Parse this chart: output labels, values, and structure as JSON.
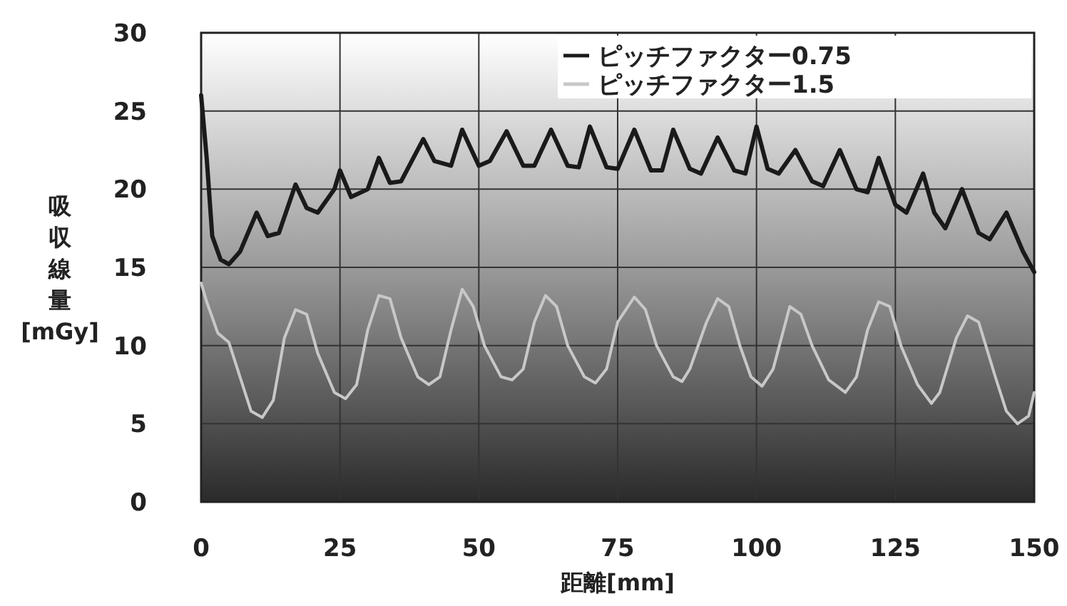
{
  "chart_data": {
    "type": "line",
    "xlabel": "距離[mm]",
    "ylabel": "吸収線量[mGy]",
    "xlim": [
      0,
      150
    ],
    "ylim": [
      0,
      30
    ],
    "xticks": [
      0,
      25,
      50,
      75,
      100,
      125,
      150
    ],
    "yticks": [
      0,
      5,
      10,
      15,
      20,
      25,
      30
    ],
    "grid": true,
    "legend": "top right",
    "line_style": "solid",
    "series": [
      {
        "name": "ピッチファクター0.75",
        "color": "#1a1a1a",
        "x": [
          0,
          1,
          2,
          3.5,
          5,
          7,
          10,
          12,
          14,
          17,
          19,
          21,
          24,
          25,
          27,
          30,
          32,
          34,
          36,
          40,
          42,
          45,
          47,
          50,
          52,
          55,
          58,
          60,
          63,
          66,
          68,
          70,
          73,
          75,
          78,
          81,
          83,
          85,
          88,
          90,
          93,
          96,
          98,
          100,
          102,
          104,
          107,
          110,
          112,
          115,
          118,
          120,
          122,
          125,
          127,
          130,
          132,
          134,
          137,
          140,
          142,
          145,
          148,
          150
        ],
        "values": [
          26,
          22,
          17,
          15.5,
          15.2,
          16,
          18.5,
          17,
          17.2,
          20.3,
          18.8,
          18.5,
          20,
          21.2,
          19.5,
          20,
          22,
          20.4,
          20.5,
          23.2,
          21.8,
          21.5,
          23.8,
          21.5,
          21.8,
          23.7,
          21.5,
          21.5,
          23.8,
          21.5,
          21.4,
          24,
          21.4,
          21.3,
          23.8,
          21.2,
          21.2,
          23.8,
          21.3,
          21,
          23.3,
          21.2,
          21,
          24,
          21.3,
          21,
          22.5,
          20.5,
          20.2,
          22.5,
          20,
          19.8,
          22,
          19,
          18.5,
          21,
          18.5,
          17.5,
          20,
          17.2,
          16.8,
          18.5,
          16,
          14.7
        ]
      },
      {
        "name": "ピッチファクター1.5",
        "color": "#c8c8c8",
        "x": [
          0,
          1,
          3,
          5,
          7,
          9,
          11,
          13,
          15,
          17,
          19,
          21,
          24,
          26,
          28,
          30,
          32,
          34,
          36,
          39,
          41,
          43,
          45,
          47,
          49,
          51,
          54,
          56,
          58,
          60,
          62,
          64,
          66,
          69,
          71,
          73,
          75,
          78,
          80,
          82,
          85,
          86.6,
          88,
          91,
          93,
          95,
          97,
          99,
          101,
          103,
          106,
          108,
          110,
          113,
          116,
          118,
          120,
          122,
          124,
          126,
          129,
          131.5,
          133,
          136,
          138,
          140,
          143,
          145,
          147,
          149,
          150
        ],
        "values": [
          14,
          12.8,
          10.8,
          10.2,
          8,
          5.8,
          5.4,
          6.5,
          10.5,
          12.3,
          12,
          9.5,
          7,
          6.6,
          7.5,
          11,
          13.2,
          13,
          10.5,
          8,
          7.5,
          8,
          11,
          13.6,
          12.5,
          10,
          8,
          7.8,
          8.5,
          11.5,
          13.2,
          12.5,
          10,
          8,
          7.6,
          8.5,
          11.5,
          13.1,
          12.3,
          10,
          8,
          7.7,
          8.5,
          11.5,
          13,
          12.5,
          10,
          8,
          7.4,
          8.5,
          12.5,
          12,
          10,
          7.8,
          7,
          8,
          11,
          12.8,
          12.5,
          10,
          7.5,
          6.3,
          7,
          10.5,
          11.9,
          11.5,
          8,
          5.8,
          5,
          5.5,
          7
        ]
      }
    ]
  }
}
